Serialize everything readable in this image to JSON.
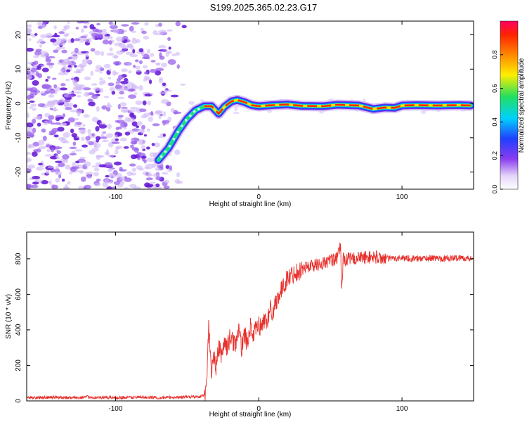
{
  "page": {
    "title": "S199.2025.365.02.23.G17"
  },
  "chart_data": [
    {
      "type": "heatmap",
      "name": "spectrogram",
      "xlabel": "Height of straight line (km)",
      "ylabel": "Frequency (Hz)",
      "xlim": [
        -162,
        150
      ],
      "ylim": [
        -25,
        24
      ],
      "xticks": [
        -100,
        0,
        100
      ],
      "xtick_labels": [
        "-100",
        "0",
        "100"
      ],
      "yticks": [
        -20,
        -10,
        0,
        10,
        20
      ],
      "ytick_labels": [
        "-20",
        "-10",
        "0",
        "10",
        "20"
      ],
      "ridge": {
        "x": [
          -70,
          -63,
          -56,
          -50,
          -44,
          -38,
          -33,
          -28,
          -24,
          -19,
          -15,
          -10,
          -5,
          0,
          10,
          20,
          30,
          45,
          55,
          70,
          80,
          88,
          95,
          100,
          110,
          125,
          140,
          148
        ],
        "y": [
          -16.5,
          -13,
          -8,
          -4.5,
          -2,
          -0.8,
          -0.8,
          -3,
          -1,
          0.6,
          1,
          0.4,
          -0.5,
          -0.8,
          -0.5,
          -0.3,
          -0.7,
          -0.8,
          -0.4,
          -0.6,
          -1.6,
          -1.2,
          -1.3,
          -0.6,
          -0.5,
          -0.6,
          -0.5,
          -0.6
        ]
      },
      "noise_region": {
        "x": [
          -162,
          -52
        ],
        "y": [
          -25,
          24
        ]
      }
    },
    {
      "type": "colorbar",
      "name": "amplitude-colorbar",
      "label": "Normalized spectral amplitude",
      "range": [
        0,
        1
      ],
      "ticks": [
        0.0,
        0.2,
        0.4,
        0.6,
        0.8
      ],
      "tick_labels": [
        "0.0",
        "0.2",
        "0.4",
        "0.6",
        "0.8"
      ]
    },
    {
      "type": "line",
      "name": "snr-line",
      "xlabel": "Height of straight line (km)",
      "ylabel": "SNR (10 * v/v)",
      "xlim": [
        -162,
        150
      ],
      "ylim": [
        0,
        950
      ],
      "xticks": [
        -100,
        0,
        100
      ],
      "xtick_labels": [
        "-100",
        "0",
        "100"
      ],
      "yticks": [
        0,
        200,
        400,
        600,
        800
      ],
      "ytick_labels": [
        "0",
        "200",
        "400",
        "600",
        "800"
      ],
      "color": "#e8302c",
      "series": [
        {
          "name": "SNR",
          "x": [
            -162,
            -150,
            -140,
            -130,
            -120,
            -110,
            -100,
            -90,
            -80,
            -70,
            -60,
            -50,
            -40,
            -37,
            -36,
            -35,
            -34,
            -33,
            -32,
            -31,
            -30,
            -28,
            -26,
            -24,
            -22,
            -20,
            -18,
            -16,
            -14,
            -12,
            -10,
            -8,
            -6,
            -4,
            -2,
            0,
            2,
            4,
            6,
            8,
            10,
            12,
            14,
            16,
            18,
            20,
            22,
            25,
            30,
            35,
            40,
            45,
            50,
            55,
            57,
            58,
            59,
            60,
            62,
            65,
            70,
            80,
            90,
            100,
            110,
            120,
            130,
            140,
            150
          ],
          "y": [
            20,
            18,
            21,
            17,
            22,
            18,
            20,
            19,
            21,
            18,
            20,
            22,
            25,
            40,
            180,
            420,
            300,
            120,
            240,
            260,
            180,
            300,
            260,
            330,
            300,
            360,
            330,
            330,
            390,
            300,
            380,
            320,
            420,
            360,
            400,
            430,
            410,
            460,
            450,
            520,
            500,
            560,
            600,
            620,
            660,
            690,
            700,
            720,
            740,
            760,
            765,
            775,
            790,
            800,
            880,
            620,
            820,
            790,
            800,
            800,
            805,
            810,
            800,
            805,
            800,
            805,
            800,
            805,
            800
          ]
        }
      ]
    }
  ]
}
